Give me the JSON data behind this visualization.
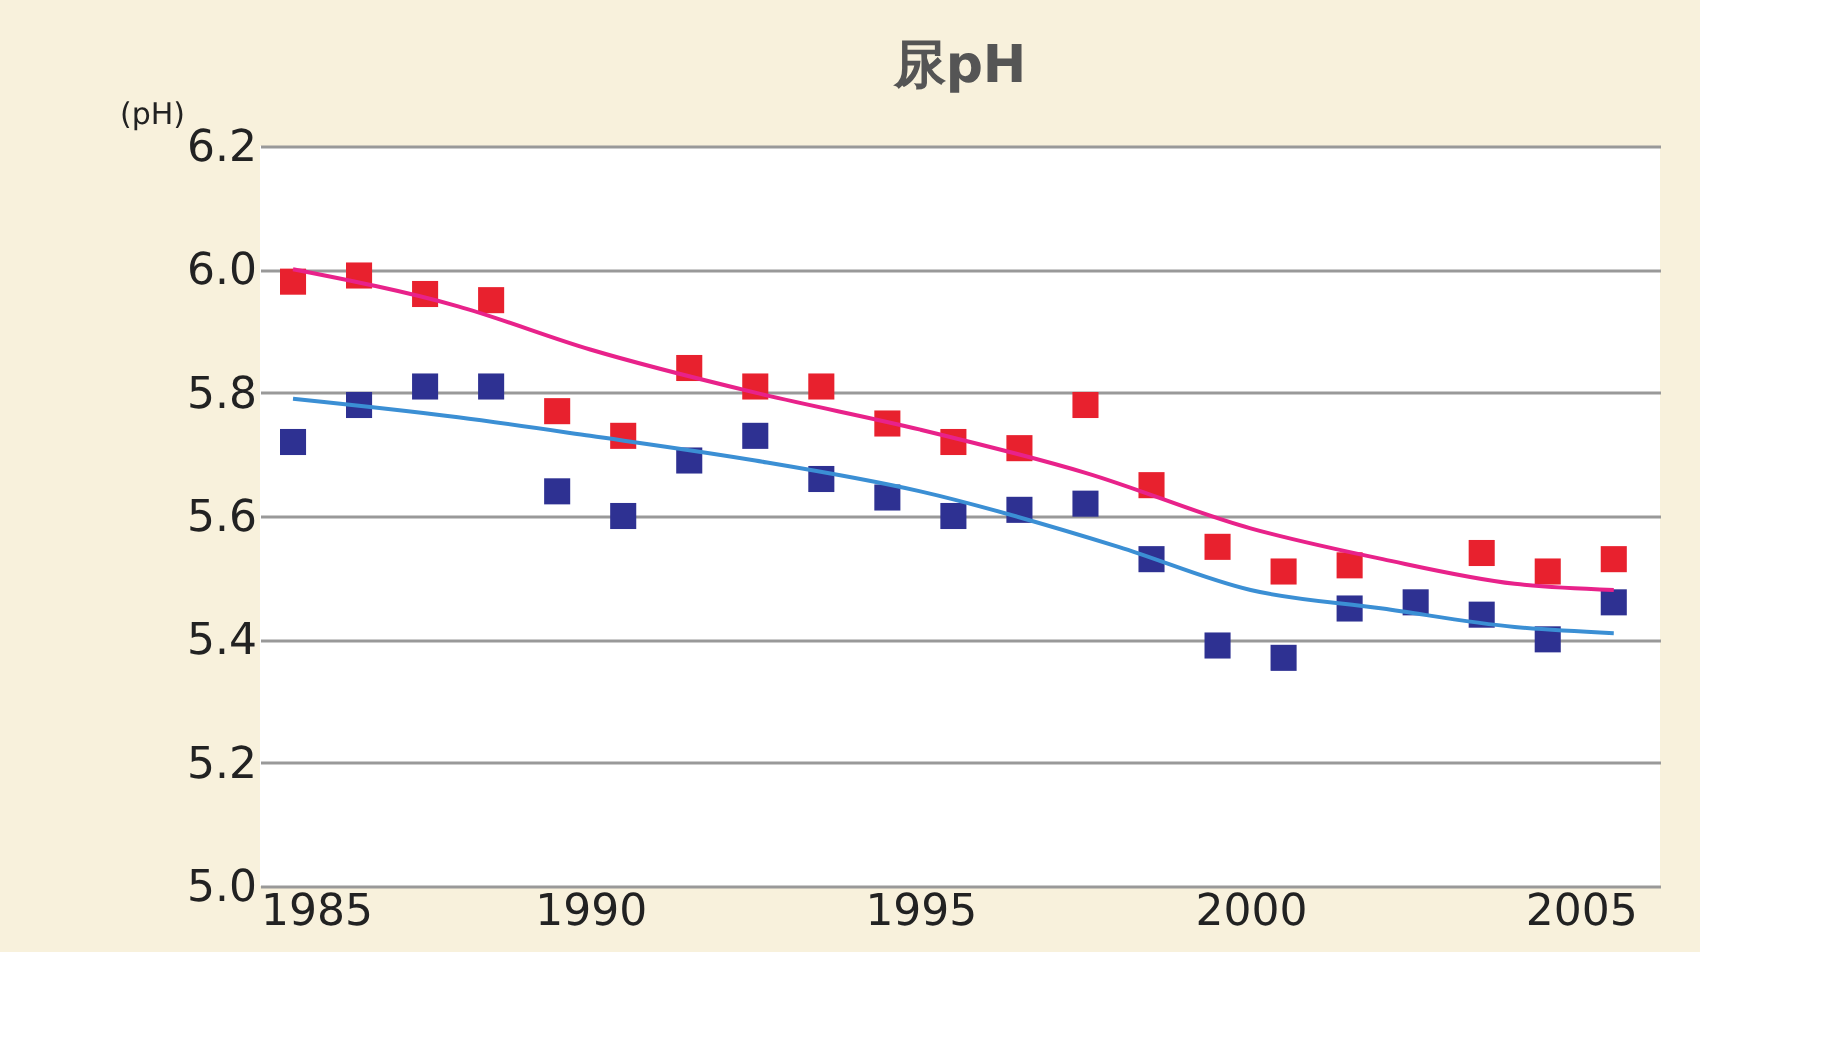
{
  "chart_data": {
    "type": "scatter",
    "title": "尿pH",
    "ylabel": "(pH)",
    "x": [
      1985.5,
      1986.5,
      1987.5,
      1988.5,
      1989.5,
      1990.5,
      1991.5,
      1992.5,
      1993.5,
      1994.5,
      1995.5,
      1996.5,
      1997.5,
      1998.5,
      1999.5,
      2000.5,
      2001.5,
      2002.5,
      2003.5,
      2004.5,
      2005.5
    ],
    "series": [
      {
        "color": "#e8212e",
        "marker": "square",
        "values": [
          5.98,
          5.99,
          5.96,
          5.95,
          5.77,
          5.73,
          5.84,
          5.81,
          5.81,
          5.75,
          5.72,
          5.71,
          5.78,
          5.65,
          5.55,
          5.51,
          5.52,
          null,
          5.54,
          5.51,
          5.53
        ]
      },
      {
        "color": "#2e3192",
        "marker": "square",
        "values": [
          5.72,
          5.78,
          5.81,
          5.81,
          5.64,
          5.6,
          5.69,
          5.73,
          5.66,
          5.63,
          5.6,
          5.61,
          5.62,
          5.53,
          5.39,
          5.37,
          5.45,
          5.46,
          5.44,
          5.4,
          5.46
        ]
      },
      {
        "type": "line",
        "color": "#e8228a",
        "marker": "none",
        "line_style": "solid",
        "x": [
          1985.5,
          1988,
          1990,
          1992.5,
          1995,
          1997.5,
          2000,
          2002,
          2004,
          2005.5
        ],
        "values": [
          6.0,
          5.94,
          5.87,
          5.8,
          5.74,
          5.67,
          5.58,
          5.53,
          5.49,
          5.48
        ]
      },
      {
        "type": "line",
        "color": "#3b8fd4",
        "marker": "none",
        "line_style": "solid",
        "x": [
          1985.5,
          1988,
          1990,
          1992.5,
          1995,
          1998,
          2000,
          2002,
          2004,
          2005.5
        ],
        "values": [
          5.79,
          5.76,
          5.73,
          5.69,
          5.64,
          5.55,
          5.48,
          5.45,
          5.42,
          5.41
        ]
      }
    ],
    "xlim": [
      1985,
      2006.2
    ],
    "xticks": [
      1985,
      1990,
      1995,
      2000,
      2005
    ],
    "ylim": [
      5.0,
      6.2
    ],
    "yticks": [
      {
        "value": 5,
        "label": "5.0"
      },
      5.2,
      5.4,
      5.6,
      5.8,
      {
        "value": 6,
        "label": "6.0"
      },
      6.2
    ],
    "grid": "y"
  }
}
